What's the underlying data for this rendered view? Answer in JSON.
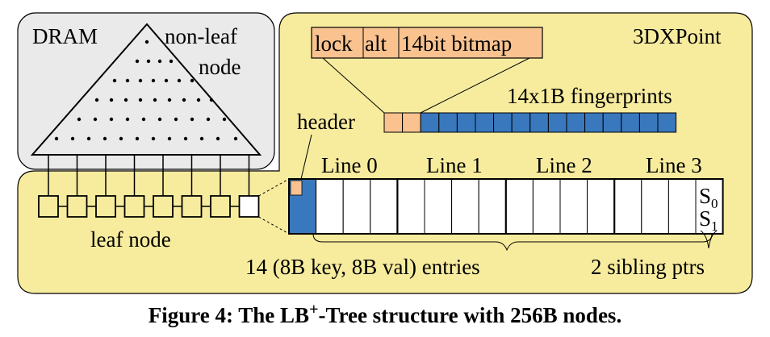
{
  "colors": {
    "dram_fill": "#eaeaea",
    "pmem_fill": "#f7ec9e",
    "header_fill": "#f9c28f",
    "fingerprint_fill": "#3a78bd",
    "stroke": "#000000"
  },
  "dram": {
    "label": "DRAM",
    "nonleaf_label_line1": "non-leaf",
    "nonleaf_label_line2": "node"
  },
  "pmem": {
    "label": "3DXPoint",
    "header_fields": [
      "lock",
      "alt",
      "14bit bitmap"
    ],
    "fingerprints_label": "14x1B fingerprints",
    "header_label": "header",
    "lines": [
      "Line 0",
      "Line 1",
      "Line 2",
      "Line 3"
    ],
    "sibling_top": "S",
    "sibling_top_sub": "0",
    "sibling_bottom": "S",
    "sibling_bottom_sub": "1",
    "entries_label": "14 (8B key, 8B val) entries",
    "sibling_label": "2 sibling ptrs"
  },
  "leaf": {
    "label": "leaf node",
    "count": 8
  },
  "caption": {
    "prefix": "Figure 4: The LB",
    "superscript": "+",
    "suffix": "-Tree structure with 256B nodes."
  }
}
